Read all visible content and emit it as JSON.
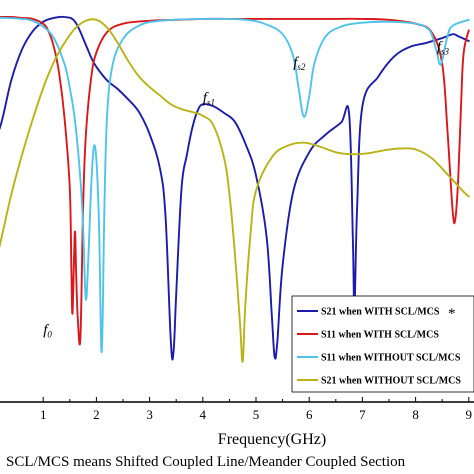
{
  "chart_data": {
    "type": "line",
    "xlabel": "Frequency(GHz)",
    "ylabel": "",
    "xlim": [
      0,
      9
    ],
    "ylim": [
      -40,
      0
    ],
    "x_ticks": [
      "1",
      "2",
      "3",
      "4",
      "5",
      "6",
      "7",
      "8",
      "9"
    ],
    "grid": false,
    "legend_position": "bottom-right",
    "note": "SCL/MCS means Shifted Coupled Line/Meander Coupled Section",
    "legend_asterisk": "*",
    "annotations": [
      {
        "text": "f",
        "sub": "0",
        "x": 1.0,
        "y": -33.2
      },
      {
        "text": "f",
        "sub": "s1",
        "x": 4.0,
        "y": -9.0
      },
      {
        "text": "f",
        "sub": "s2",
        "x": 5.7,
        "y": -5.3
      },
      {
        "text": "f",
        "sub": "s3",
        "x": 8.4,
        "y": -3.7
      }
    ],
    "series": [
      {
        "name": "S21 when WITH SCL/MCS",
        "color": "#1c1ca8",
        "x": [
          0.0,
          0.2,
          0.4,
          0.6,
          0.8,
          1.0,
          1.2,
          1.4,
          1.6,
          1.8,
          1.9,
          2.0,
          2.2,
          2.4,
          2.6,
          2.8,
          3.0,
          3.2,
          3.3,
          3.4,
          3.45,
          3.5,
          3.6,
          3.7,
          3.8,
          3.9,
          4.0,
          4.2,
          4.4,
          4.6,
          4.8,
          5.0,
          5.2,
          5.3,
          5.35,
          5.4,
          5.5,
          5.7,
          6.0,
          6.3,
          6.6,
          6.75,
          6.82,
          6.85,
          6.9,
          7.0,
          7.3,
          7.6,
          7.9,
          8.2,
          8.5,
          8.7,
          8.8,
          9.0
        ],
        "y": [
          -14.0,
          -11.4,
          -6.7,
          -3.5,
          -1.6,
          -0.6,
          -0.2,
          -0.1,
          -0.6,
          -3.0,
          -4.3,
          -5.3,
          -6.7,
          -7.6,
          -8.7,
          -10.0,
          -12.3,
          -16.0,
          -21.0,
          -34.0,
          -35.0,
          -29.0,
          -18.0,
          -14.5,
          -11.7,
          -9.9,
          -9.2,
          -9.4,
          -10.1,
          -11.0,
          -13.3,
          -16.6,
          -23.0,
          -31.5,
          -35.5,
          -34.0,
          -26.0,
          -18.3,
          -14.2,
          -12.4,
          -11.1,
          -10.2,
          -23.0,
          -30.5,
          -20.0,
          -9.4,
          -6.3,
          -4.2,
          -3.2,
          -2.8,
          -2.3,
          -1.9,
          -2.1,
          -2.6
        ]
      },
      {
        "name": "S11 when WITH SCL/MCS",
        "color": "#d8181c",
        "x": [
          0.0,
          0.2,
          0.4,
          0.6,
          0.8,
          1.0,
          1.1,
          1.2,
          1.3,
          1.4,
          1.5,
          1.53,
          1.55,
          1.58,
          1.6,
          1.62,
          1.65,
          1.7,
          1.75,
          1.8,
          1.9,
          2.0,
          2.2,
          2.5,
          3.0,
          3.5,
          4.0,
          4.5,
          5.0,
          5.5,
          6.0,
          6.5,
          7.0,
          7.5,
          8.0,
          8.3,
          8.5,
          8.6,
          8.7,
          8.75,
          8.8,
          8.85,
          8.9,
          9.0
        ],
        "y": [
          -0.1,
          -0.1,
          -0.1,
          -0.2,
          -0.3,
          -0.8,
          -1.6,
          -3.2,
          -6.0,
          -10.6,
          -18.0,
          -26.5,
          -31.0,
          -25.0,
          -22.5,
          -27.0,
          -31.5,
          -33.5,
          -20.0,
          -12.5,
          -6.5,
          -3.8,
          -1.7,
          -0.8,
          -0.5,
          -0.4,
          -0.3,
          -0.3,
          -0.3,
          -0.3,
          -0.3,
          -0.3,
          -0.3,
          -0.4,
          -0.8,
          -1.7,
          -5.0,
          -12.0,
          -20.5,
          -21.0,
          -17.0,
          -10.0,
          -4.0,
          -1.5
        ]
      },
      {
        "name": "S11 when WITHOUT SCL/MCS",
        "color": "#4fc3ea",
        "x": [
          0.0,
          0.3,
          0.6,
          0.8,
          1.0,
          1.2,
          1.4,
          1.5,
          1.6,
          1.7,
          1.75,
          1.8,
          1.85,
          1.9,
          1.95,
          2.0,
          2.05,
          2.1,
          2.15,
          2.2,
          2.3,
          2.5,
          2.8,
          3.2,
          4.0,
          4.8,
          5.2,
          5.5,
          5.7,
          5.8,
          5.9,
          6.0,
          6.1,
          6.3,
          6.6,
          7.0,
          7.5,
          8.0,
          8.2,
          8.3,
          8.4,
          8.45,
          8.5,
          8.6,
          8.7,
          9.0
        ],
        "y": [
          -0.2,
          -0.2,
          -0.3,
          -0.5,
          -1.1,
          -2.3,
          -5.0,
          -7.5,
          -11.0,
          -17.0,
          -22.0,
          -29.5,
          -25.0,
          -18.0,
          -13.7,
          -15.0,
          -22.0,
          -35.0,
          -20.0,
          -10.5,
          -5.2,
          -2.4,
          -1.0,
          -0.5,
          -0.3,
          -0.4,
          -0.9,
          -1.9,
          -4.2,
          -7.5,
          -10.5,
          -8.4,
          -4.9,
          -2.2,
          -1.1,
          -0.7,
          -0.6,
          -0.8,
          -1.2,
          -1.9,
          -3.8,
          -5.0,
          -4.6,
          -2.1,
          -1.0,
          -0.4
        ]
      },
      {
        "name": "S21 when WITHOUT SCL/MCS",
        "color": "#b8b418",
        "x": [
          0.0,
          0.2,
          0.4,
          0.6,
          0.8,
          1.0,
          1.2,
          1.4,
          1.6,
          1.8,
          2.0,
          2.2,
          2.4,
          2.6,
          2.8,
          3.0,
          3.2,
          3.4,
          3.6,
          3.8,
          4.0,
          4.2,
          4.4,
          4.5,
          4.6,
          4.7,
          4.75,
          4.8,
          4.9,
          5.0,
          5.3,
          5.6,
          5.9,
          6.2,
          6.5,
          6.8,
          7.1,
          7.4,
          7.7,
          8.0,
          8.3,
          8.6,
          8.9,
          9.0
        ],
        "y": [
          -28.0,
          -23.5,
          -18.6,
          -14.5,
          -10.8,
          -7.5,
          -4.8,
          -2.8,
          -1.3,
          -0.5,
          -0.4,
          -1.2,
          -2.8,
          -4.7,
          -6.3,
          -7.4,
          -8.3,
          -9.2,
          -9.7,
          -10.0,
          -10.4,
          -11.4,
          -14.8,
          -18.5,
          -24.5,
          -32.0,
          -36.0,
          -30.0,
          -22.5,
          -18.2,
          -14.7,
          -13.5,
          -13.2,
          -13.6,
          -14.2,
          -14.4,
          -14.3,
          -14.0,
          -13.8,
          -13.9,
          -14.8,
          -16.5,
          -18.3,
          -18.8
        ]
      }
    ]
  }
}
